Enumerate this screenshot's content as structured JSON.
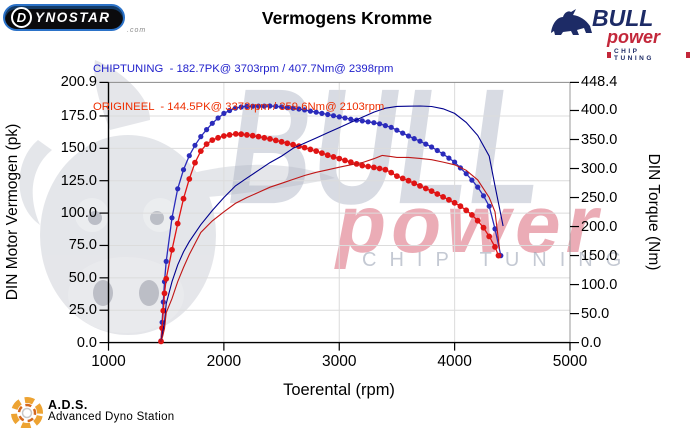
{
  "header": {
    "title": "Vermogens Kromme",
    "dynostar_logo": {
      "d": "D",
      "rest": "YNOSTAR",
      "suffix": ".com"
    },
    "bull_logo": {
      "line1": "BULL",
      "line2": "power",
      "line3": "CHIP TUNING"
    }
  },
  "legend": {
    "chiptuning": {
      "text": "CHIPTUNING  - 182.7PK@ 3703rpm / 407.7Nm@ 2398rpm",
      "color": "#2222cc"
    },
    "origineel": {
      "text": "ORIGINEEL  - 144.5PK@ 3373rpm / 359.6Nm@ 2103rpm",
      "color": "#ee2e00"
    }
  },
  "watermarks": {
    "bull": "BULL",
    "power": "power",
    "chip_tuning": "CHIP TUNING"
  },
  "footer": {
    "ads": "A.D.S.",
    "ads_sub": "Advanced Dyno Station"
  },
  "chart_data": {
    "type": "line",
    "title": "Vermogens Kromme",
    "xlabel": "Toerental (rpm)",
    "ylabel_left": "DIN Motor Vermogen (pk)",
    "ylabel_right": "DIN Torque (Nm)",
    "x_range": [
      1000,
      5000
    ],
    "y_left_range": [
      0,
      200.9
    ],
    "y_right_range": [
      0,
      448.4
    ],
    "x_ticks": [
      "1000",
      "2000",
      "3000",
      "4000",
      "5000"
    ],
    "y_left_ticks": [
      "0.0",
      "25.0",
      "50.0",
      "75.0",
      "100.0",
      "125.0",
      "150.0",
      "175.0",
      "200.9"
    ],
    "y_right_ticks": [
      "0.0",
      "50.0",
      "100.0",
      "150.0",
      "200.0",
      "250.0",
      "300.0",
      "350.0",
      "400.0",
      "448.4"
    ],
    "grid": {
      "vertical_rpm": [
        2000,
        3000,
        4000
      ],
      "horizontal_pk": [
        25,
        50,
        75,
        100,
        125,
        150,
        175
      ]
    },
    "peaks": {
      "chiptuning": {
        "power_pk": 182.7,
        "power_rpm": 3703,
        "torque_nm": 407.7,
        "torque_rpm": 2398
      },
      "origineel": {
        "power_pk": 144.5,
        "power_rpm": 3373,
        "torque_nm": 359.6,
        "torque_rpm": 2103
      }
    },
    "series": [
      {
        "name": "chiptuning-torque",
        "axis": "right",
        "unit": "Nm",
        "color": "#2b2bbb",
        "width": 1.3,
        "markers": true,
        "marker_r": 2.6,
        "points": [
          [
            1455,
            3
          ],
          [
            1465,
            35
          ],
          [
            1475,
            70
          ],
          [
            1485,
            105
          ],
          [
            1500,
            140
          ],
          [
            1550,
            215
          ],
          [
            1600,
            265
          ],
          [
            1650,
            298
          ],
          [
            1700,
            322
          ],
          [
            1750,
            340
          ],
          [
            1800,
            355
          ],
          [
            1850,
            367
          ],
          [
            1900,
            378
          ],
          [
            1950,
            387
          ],
          [
            2000,
            395
          ],
          [
            2050,
            400
          ],
          [
            2100,
            404
          ],
          [
            2150,
            406
          ],
          [
            2200,
            407
          ],
          [
            2250,
            407.4
          ],
          [
            2300,
            407.5
          ],
          [
            2350,
            407.6
          ],
          [
            2398,
            407.7
          ],
          [
            2450,
            407
          ],
          [
            2500,
            406
          ],
          [
            2550,
            405
          ],
          [
            2600,
            404
          ],
          [
            2650,
            402.5
          ],
          [
            2700,
            401
          ],
          [
            2750,
            399
          ],
          [
            2800,
            397
          ],
          [
            2850,
            395
          ],
          [
            2900,
            393
          ],
          [
            2950,
            391
          ],
          [
            3000,
            389
          ],
          [
            3050,
            387
          ],
          [
            3100,
            385
          ],
          [
            3150,
            383.5
          ],
          [
            3200,
            382
          ],
          [
            3250,
            380.5
          ],
          [
            3300,
            379
          ],
          [
            3350,
            377
          ],
          [
            3400,
            374
          ],
          [
            3450,
            371
          ],
          [
            3500,
            366
          ],
          [
            3550,
            361
          ],
          [
            3600,
            356
          ],
          [
            3650,
            351.5
          ],
          [
            3700,
            347
          ],
          [
            3750,
            342
          ],
          [
            3800,
            337
          ],
          [
            3850,
            331
          ],
          [
            3900,
            325
          ],
          [
            3950,
            318
          ],
          [
            4000,
            311
          ],
          [
            4050,
            301
          ],
          [
            4100,
            291
          ],
          [
            4150,
            280
          ],
          [
            4200,
            268
          ],
          [
            4250,
            253
          ],
          [
            4300,
            235
          ],
          [
            4350,
            196
          ],
          [
            4400,
            150
          ]
        ]
      },
      {
        "name": "origineel-torque",
        "axis": "right",
        "unit": "Nm",
        "color": "#e01414",
        "width": 1.3,
        "markers": true,
        "marker_r": 2.9,
        "points": [
          [
            1455,
            2
          ],
          [
            1465,
            25
          ],
          [
            1475,
            55
          ],
          [
            1485,
            85
          ],
          [
            1500,
            110
          ],
          [
            1550,
            160
          ],
          [
            1600,
            205
          ],
          [
            1650,
            248
          ],
          [
            1700,
            282
          ],
          [
            1750,
            310
          ],
          [
            1800,
            330
          ],
          [
            1850,
            342
          ],
          [
            1900,
            349
          ],
          [
            1950,
            353
          ],
          [
            2000,
            356
          ],
          [
            2050,
            358
          ],
          [
            2103,
            359.6
          ],
          [
            2150,
            359.2
          ],
          [
            2200,
            358
          ],
          [
            2250,
            356.5
          ],
          [
            2300,
            355
          ],
          [
            2350,
            353
          ],
          [
            2400,
            351
          ],
          [
            2450,
            348.5
          ],
          [
            2500,
            346
          ],
          [
            2550,
            343.5
          ],
          [
            2600,
            341
          ],
          [
            2650,
            338.5
          ],
          [
            2700,
            336
          ],
          [
            2750,
            333
          ],
          [
            2800,
            330
          ],
          [
            2850,
            326.5
          ],
          [
            2900,
            323
          ],
          [
            2950,
            320
          ],
          [
            3000,
            317
          ],
          [
            3050,
            314
          ],
          [
            3100,
            311
          ],
          [
            3150,
            308
          ],
          [
            3200,
            305
          ],
          [
            3250,
            303.5
          ],
          [
            3300,
            302
          ],
          [
            3350,
            300
          ],
          [
            3400,
            298
          ],
          [
            3450,
            293
          ],
          [
            3500,
            287
          ],
          [
            3550,
            283
          ],
          [
            3600,
            279
          ],
          [
            3650,
            274.5
          ],
          [
            3700,
            270
          ],
          [
            3750,
            265.5
          ],
          [
            3800,
            261
          ],
          [
            3850,
            256
          ],
          [
            3900,
            251
          ],
          [
            3950,
            246
          ],
          [
            4000,
            241
          ],
          [
            4050,
            235
          ],
          [
            4100,
            228
          ],
          [
            4150,
            220
          ],
          [
            4200,
            210
          ],
          [
            4250,
            198
          ],
          [
            4300,
            183
          ],
          [
            4350,
            165
          ],
          [
            4380,
            150
          ]
        ]
      },
      {
        "name": "chiptuning-power",
        "axis": "left",
        "unit": "pk",
        "color": "#00008e",
        "width": 1.1,
        "markers": false,
        "marker_r": 0,
        "points": [
          [
            1455,
            0.6
          ],
          [
            1470,
            8
          ],
          [
            1485,
            16
          ],
          [
            1500,
            30
          ],
          [
            1550,
            47
          ],
          [
            1600,
            60
          ],
          [
            1650,
            70
          ],
          [
            1700,
            78
          ],
          [
            1800,
            91
          ],
          [
            1900,
            102
          ],
          [
            2000,
            112
          ],
          [
            2100,
            121
          ],
          [
            2200,
            127
          ],
          [
            2300,
            133
          ],
          [
            2400,
            139
          ],
          [
            2500,
            144
          ],
          [
            2600,
            150
          ],
          [
            2700,
            154
          ],
          [
            2800,
            158
          ],
          [
            2900,
            162
          ],
          [
            3000,
            166
          ],
          [
            3100,
            170
          ],
          [
            3200,
            174
          ],
          [
            3300,
            178
          ],
          [
            3400,
            181
          ],
          [
            3500,
            182.4
          ],
          [
            3600,
            182.5
          ],
          [
            3703,
            182.7
          ],
          [
            3800,
            182.3
          ],
          [
            3900,
            180.5
          ],
          [
            4000,
            177
          ],
          [
            4100,
            170
          ],
          [
            4200,
            160
          ],
          [
            4300,
            144
          ],
          [
            4350,
            121
          ],
          [
            4420,
            90
          ]
        ]
      },
      {
        "name": "origineel-power",
        "axis": "left",
        "unit": "pk",
        "color": "#c01616",
        "width": 1.1,
        "markers": false,
        "marker_r": 0,
        "points": [
          [
            1455,
            0.4
          ],
          [
            1470,
            5
          ],
          [
            1485,
            11
          ],
          [
            1500,
            23
          ],
          [
            1550,
            34
          ],
          [
            1600,
            47
          ],
          [
            1650,
            58
          ],
          [
            1700,
            68
          ],
          [
            1800,
            85
          ],
          [
            1900,
            94
          ],
          [
            2000,
            101
          ],
          [
            2100,
            107.5
          ],
          [
            2200,
            112
          ],
          [
            2300,
            116
          ],
          [
            2400,
            120
          ],
          [
            2500,
            123
          ],
          [
            2600,
            126
          ],
          [
            2700,
            129
          ],
          [
            2800,
            131.5
          ],
          [
            2900,
            133.4
          ],
          [
            3000,
            135.4
          ],
          [
            3100,
            137.3
          ],
          [
            3200,
            139
          ],
          [
            3300,
            142
          ],
          [
            3373,
            144.5
          ],
          [
            3450,
            143.6
          ],
          [
            3500,
            143
          ],
          [
            3600,
            143
          ],
          [
            3700,
            142.2
          ],
          [
            3800,
            141.2
          ],
          [
            3900,
            139.4
          ],
          [
            4000,
            137.3
          ],
          [
            4100,
            133
          ],
          [
            4200,
            125.6
          ],
          [
            4300,
            112
          ],
          [
            4350,
            101
          ],
          [
            4390,
            72
          ]
        ]
      }
    ]
  }
}
